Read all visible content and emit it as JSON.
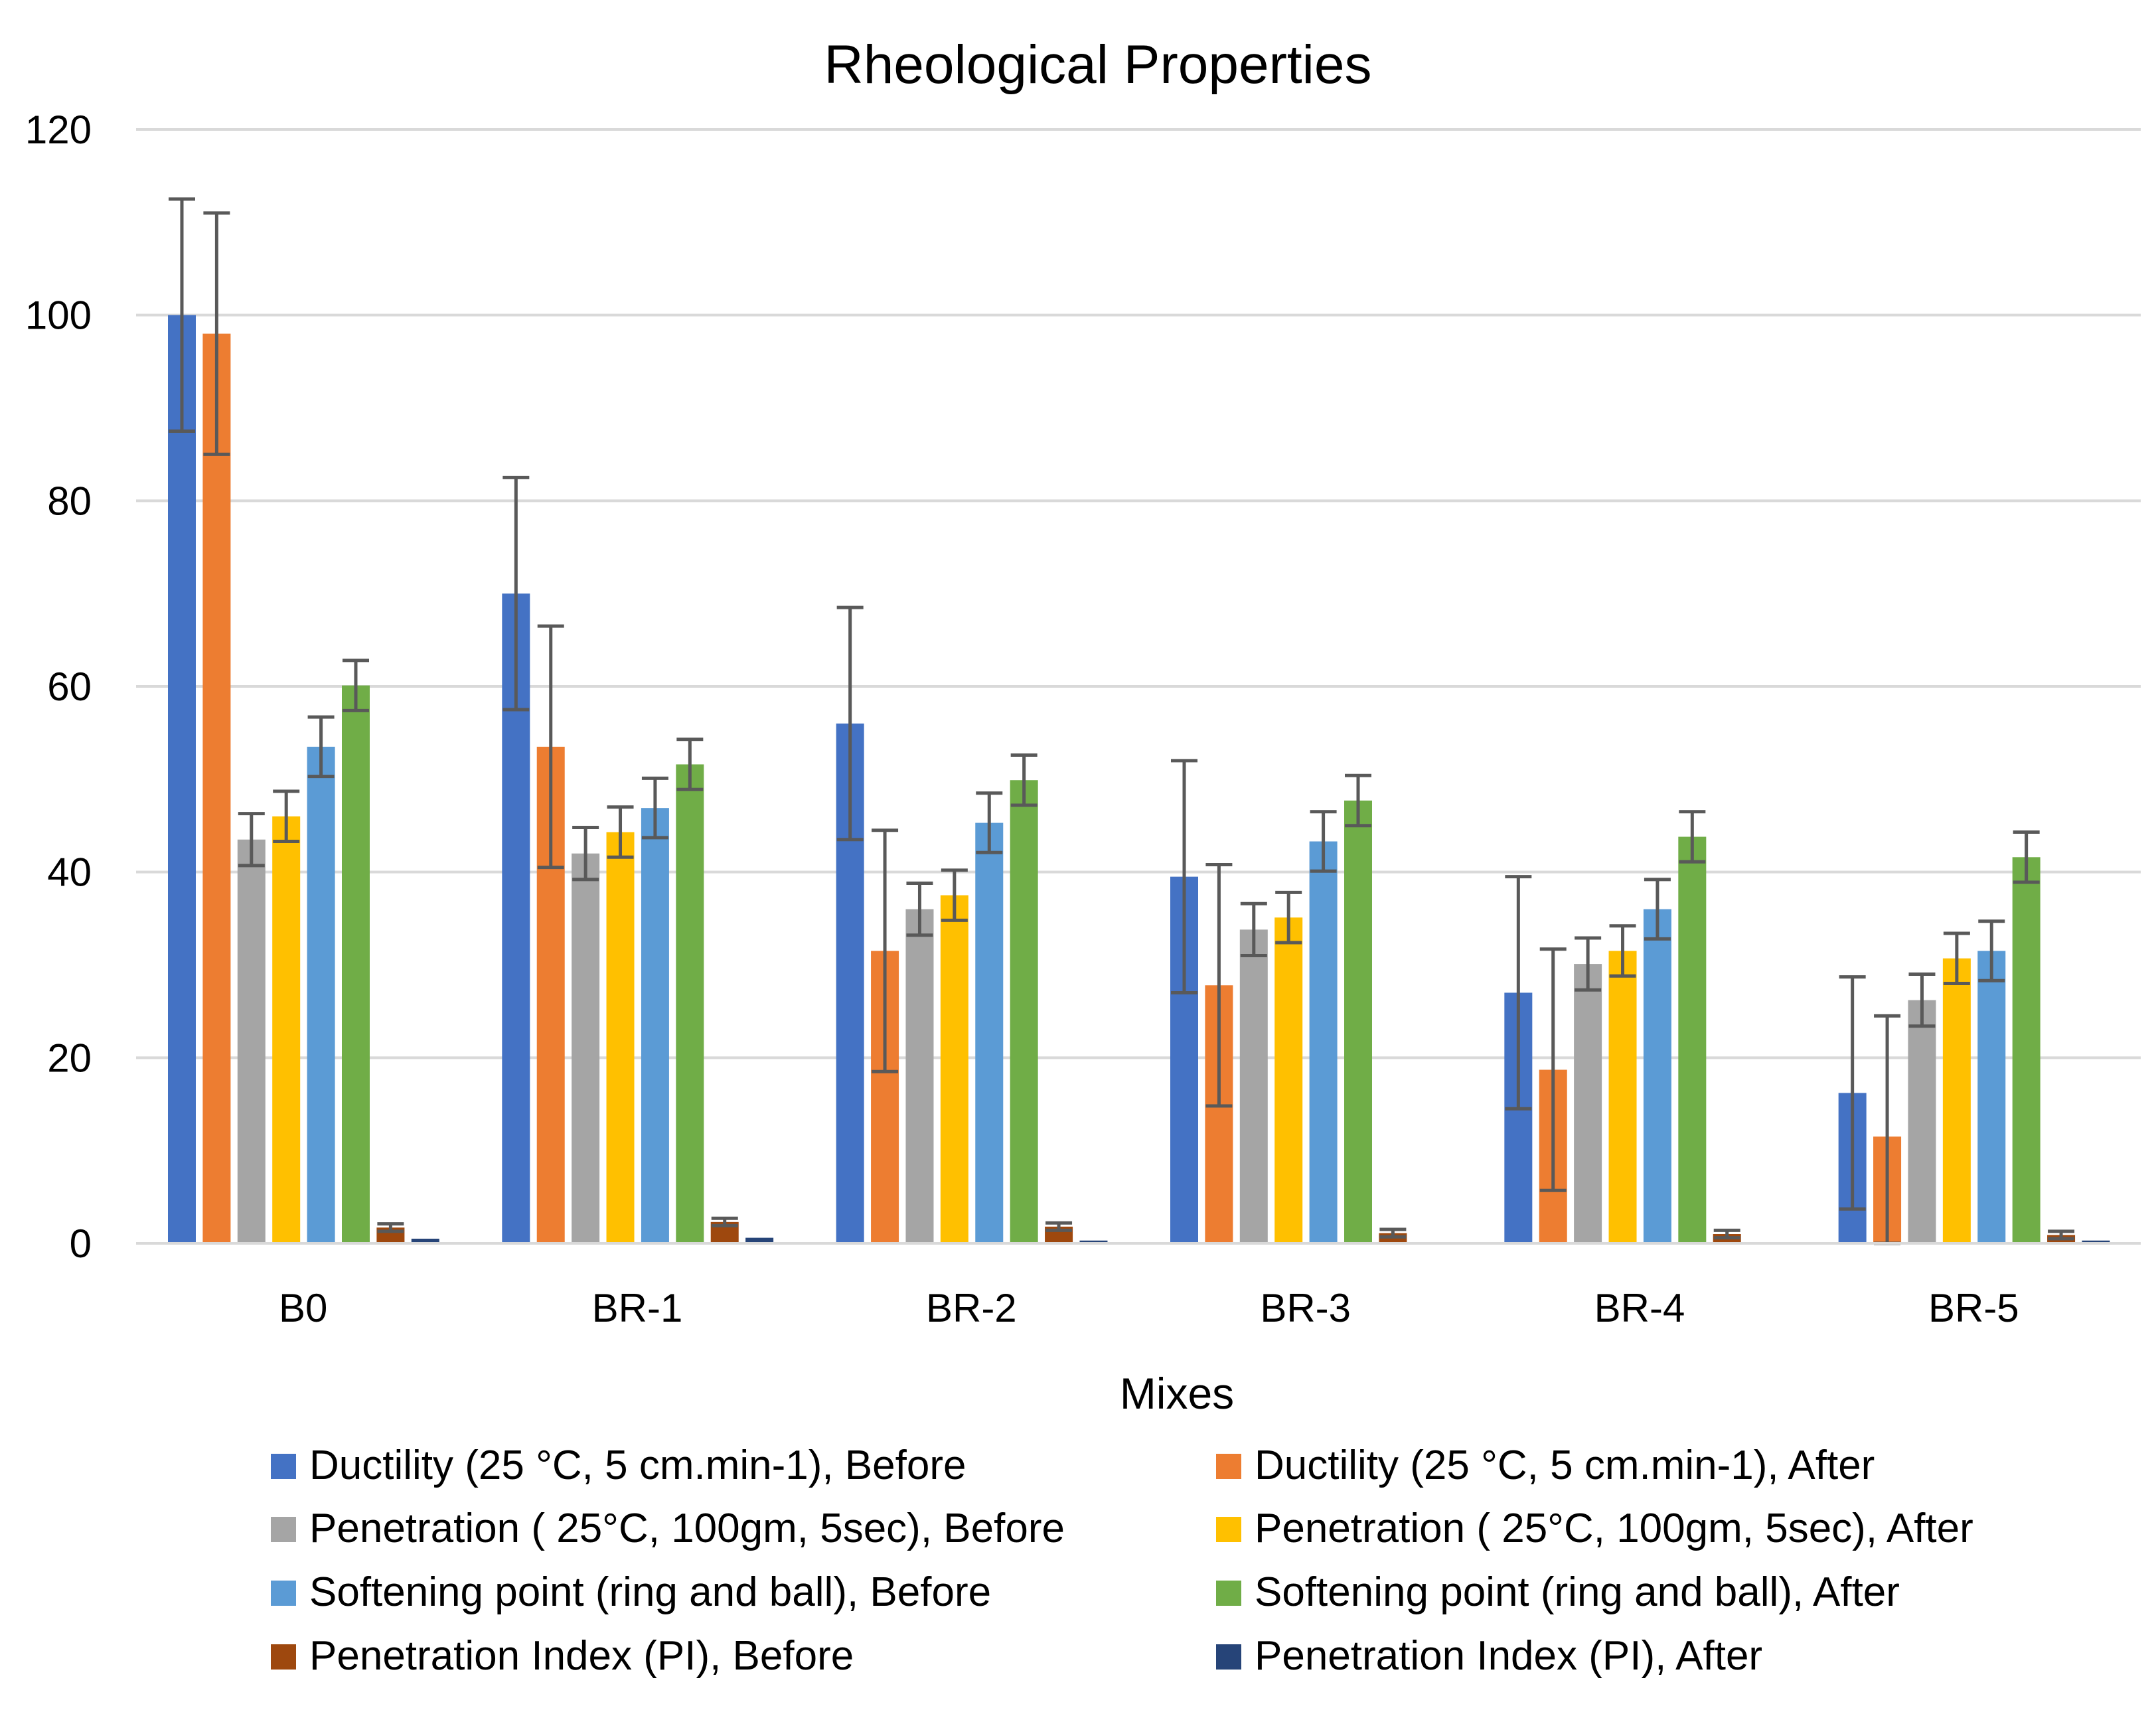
{
  "chart_data": {
    "type": "bar",
    "title": "Rheological Properties",
    "xlabel": "Mixes",
    "ylabel": "",
    "ylim": [
      0,
      120
    ],
    "yticks": [
      0,
      20,
      40,
      60,
      80,
      100,
      120
    ],
    "grid": true,
    "legend_position": "bottom",
    "categories": [
      "B0",
      "BR-1",
      "BR-2",
      "BR-3",
      "BR-4",
      "BR-5"
    ],
    "series": [
      {
        "name": "Ductility (25 °C, 5 cm.min-1), Before",
        "color": "#4472C4",
        "values": [
          100,
          70,
          56,
          39.5,
          27,
          16.2
        ],
        "errors": [
          12.5,
          12.5,
          12.5,
          12.5,
          12.5,
          12.5
        ]
      },
      {
        "name": "Ductility (25 °C, 5 cm.min-1), After",
        "color": "#ED7D31",
        "values": [
          98,
          53.5,
          31.5,
          27.8,
          18.7,
          11.5
        ],
        "errors": [
          13,
          13,
          13,
          13,
          13,
          13
        ]
      },
      {
        "name": "Penetration ( 25°C, 100gm, 5sec), Before",
        "color": "#A5A5A5",
        "values": [
          43.5,
          42,
          36,
          33.8,
          30.1,
          26.2
        ],
        "errors": [
          2.8,
          2.8,
          2.8,
          2.8,
          2.8,
          2.8
        ]
      },
      {
        "name": "Penetration ( 25°C, 100gm, 5sec), After",
        "color": "#FFC000",
        "values": [
          46,
          44.3,
          37.5,
          35.1,
          31.5,
          30.7
        ],
        "errors": [
          2.7,
          2.7,
          2.7,
          2.7,
          2.7,
          2.7
        ]
      },
      {
        "name": "Softening point (ring and ball), Before",
        "color": "#5B9BD5",
        "values": [
          53.5,
          46.9,
          45.3,
          43.3,
          36,
          31.5
        ],
        "errors": [
          3.2,
          3.2,
          3.2,
          3.2,
          3.2,
          3.2
        ]
      },
      {
        "name": "Softening point (ring and ball), After",
        "color": "#70AD47",
        "values": [
          60.1,
          51.6,
          49.9,
          47.7,
          43.8,
          41.6
        ],
        "errors": [
          2.7,
          2.7,
          2.7,
          2.7,
          2.7,
          2.7
        ]
      },
      {
        "name": "Penetration Index  (PI), Before",
        "color": "#9E480E",
        "values": [
          1.7,
          2.3,
          1.8,
          1.1,
          1.0,
          0.9
        ],
        "errors": [
          0.4,
          0.4,
          0.4,
          0.4,
          0.4,
          0.4
        ]
      },
      {
        "name": "Penetration Index (PI), After",
        "color": "#264478",
        "values": [
          0.5,
          0.6,
          0.3,
          0.1,
          0.1,
          0.3
        ],
        "errors": [
          0,
          0,
          0,
          0,
          0,
          0
        ]
      }
    ]
  }
}
